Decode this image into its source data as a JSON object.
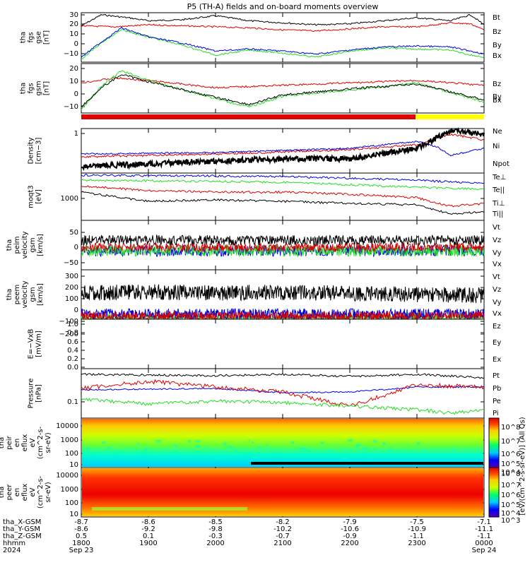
{
  "title": "P5 (TH-A) fields and on-board moments overview",
  "colors": {
    "black": "#000000",
    "red": "#dd0000",
    "green": "#22dd22",
    "blue": "#0000dd",
    "yellow": "#ffff00",
    "frame": "#000000"
  },
  "bars": {
    "colors": [
      "red",
      "yellow"
    ],
    "fractions": [
      0.83,
      0.17
    ]
  },
  "panels": [
    {
      "id": "fgs-gse",
      "ylabel": [
        "tha",
        "fgs",
        "gse",
        "[nT]"
      ],
      "ticks": [
        "30",
        "20",
        "10",
        "0",
        "−10"
      ],
      "legend": [
        "Bt",
        "Bz",
        "By",
        "Bx"
      ],
      "legend_colors": [
        "black",
        "red",
        "green",
        "blue"
      ],
      "ylim": [
        -17,
        32
      ],
      "ytick_values": [
        30,
        20,
        10,
        0,
        -10
      ]
    },
    {
      "id": "fgs-gsm",
      "ylabel": [
        "tha",
        "fgs",
        "gsm",
        "[nT]"
      ],
      "ticks": [
        "20",
        "10",
        "0",
        "−10"
      ],
      "legend": [
        "Bz",
        "By",
        "Bx"
      ],
      "legend_colors": [
        "red",
        "green",
        "black"
      ],
      "ylim": [
        -17,
        24
      ],
      "ytick_values": [
        20,
        10,
        0,
        -10
      ]
    },
    {
      "id": "density",
      "ylabel": [
        "Density",
        "[cm−3]"
      ],
      "ticks": [
        "1"
      ],
      "legend": [
        "Ne",
        "Ni",
        "Npot"
      ],
      "legend_colors": [
        "red",
        "black",
        "blue"
      ]
    },
    {
      "id": "temp",
      "ylabel": [
        "moqt3",
        "[eV]"
      ],
      "ticks": [
        "1000"
      ],
      "legend": [
        "Te⊥",
        "Te||",
        "Ti⊥",
        "Ti||"
      ],
      "legend_colors": [
        "red",
        "black",
        "blue",
        "green"
      ]
    },
    {
      "id": "peim-vel",
      "ylabel": [
        "tha",
        "peim",
        "velocity",
        "gsm",
        "[km/s]"
      ],
      "ticks": [
        "50",
        "0",
        "−50"
      ],
      "legend": [
        "Vt",
        "Vz",
        "Vy",
        "Vx"
      ],
      "legend_colors": [
        "black",
        "red",
        "green",
        "blue"
      ],
      "ylim": [
        -75,
        75
      ],
      "ytick_values": [
        50,
        0,
        -50
      ]
    },
    {
      "id": "peem-vel",
      "ylabel": [
        "tha",
        "peem",
        "velocity",
        "gsm",
        "[km/s]"
      ],
      "ticks": [
        "300",
        "200",
        "100",
        "0",
        "−100",
        "−200"
      ],
      "legend": [
        "Vt",
        "Vz",
        "Vy",
        "Vx"
      ],
      "legend_colors": [
        "black",
        "red",
        "green",
        "blue"
      ],
      "ylim": [
        -220,
        380
      ],
      "ytick_values": [
        300,
        200,
        100,
        0,
        -100,
        -200
      ]
    },
    {
      "id": "efield",
      "ylabel": [
        "E=−VxB",
        "[mV/m]"
      ],
      "ticks": [
        "1.0",
        "0.8",
        "0.6",
        "0.4",
        "0.2",
        "0.0"
      ],
      "legend": [
        "Ez",
        "Ey",
        "Ex"
      ],
      "legend_colors": [
        "red",
        "green",
        "blue"
      ],
      "ylim": [
        -0.05,
        1.0
      ],
      "ytick_values": [
        1.0,
        0.8,
        0.6,
        0.4,
        0.2,
        0.0
      ]
    },
    {
      "id": "pressure",
      "ylabel": [
        "Pressure",
        "[nPa]"
      ],
      "ticks": [
        "0.1"
      ],
      "legend": [
        "Pt",
        "Pb",
        "Pe",
        "Pi"
      ],
      "legend_colors": [
        "black",
        "red",
        "green",
        "blue"
      ]
    },
    {
      "id": "ion-spec",
      "ylabel": [
        "tha",
        "peir",
        "en",
        "eflux",
        "eV",
        "(cm^2-s-",
        "sr-eV)"
      ],
      "ticks": [
        "10000",
        "1000",
        "100",
        "10"
      ]
    },
    {
      "id": "el-spec",
      "ylabel": [
        "tha",
        "peer",
        "en",
        "eflux",
        "eV",
        "(cm^2-s-",
        "sr-eV)"
      ],
      "ticks": [
        "10000",
        "1000",
        "100",
        "10"
      ]
    }
  ],
  "colorbar": {
    "label": "[eV/(cm^2-s-sr-eV)] (All Qs)",
    "ticks_upper": [
      "10^8",
      "10^7",
      "10^6",
      "10^5",
      "10^4"
    ],
    "ticks_lower": [
      "10^8",
      "10^7",
      "10^6",
      "10^5",
      "10^4",
      "10^3"
    ]
  },
  "xaxis": {
    "row_labels": [
      "tha_X-GSM",
      "tha_Y-GSM",
      "tha_Z-GSM",
      "hhmm",
      "2024"
    ],
    "columns": [
      {
        "values": [
          "-8.7",
          "-8.6",
          "0.5",
          "1800",
          "Sep 23"
        ]
      },
      {
        "values": [
          "-8.6",
          "-9.2",
          "0.1",
          "1900",
          ""
        ]
      },
      {
        "values": [
          "-8.5",
          "-9.8",
          "-0.3",
          "2000",
          ""
        ]
      },
      {
        "values": [
          "-8.2",
          "-10.2",
          "-0.7",
          "2100",
          ""
        ]
      },
      {
        "values": [
          "-7.9",
          "-10.6",
          "-0.9",
          "2200",
          ""
        ]
      },
      {
        "values": [
          "-7.5",
          "-10.9",
          "-1.1",
          "2300",
          ""
        ]
      },
      {
        "values": [
          "-7.1",
          "-11.1",
          "-1.1",
          "0000",
          "Sep 24"
        ]
      }
    ]
  },
  "chart_data": {
    "type": "line",
    "title": "P5 (TH-A) fields and on-board moments overview",
    "x_range_hhmm": [
      "1800",
      "0000"
    ],
    "series_fgs_gse": [
      {
        "name": "Bt",
        "x_hr": [
          0,
          0.3,
          0.7,
          1.0,
          1.5,
          2.0,
          2.5,
          3.0,
          3.5,
          4.0,
          4.5,
          5.0,
          5.5,
          5.8,
          6.0
        ],
        "values": [
          19,
          30,
          27,
          24,
          25,
          29,
          24,
          22,
          20,
          21,
          24,
          27,
          24,
          30,
          20
        ]
      },
      {
        "name": "Bz",
        "x_hr": [
          0,
          0.5,
          1.0,
          1.5,
          2.0,
          2.5,
          3.0,
          3.5,
          4.0,
          4.5,
          5.0,
          5.5,
          5.8,
          6.0
        ],
        "values": [
          19,
          18,
          20,
          19,
          18,
          17,
          15,
          14,
          16,
          18,
          18,
          22,
          21,
          15
        ]
      },
      {
        "name": "By",
        "x_hr": [
          0,
          0.3,
          0.6,
          1.0,
          1.5,
          2.0,
          2.5,
          3.0,
          3.5,
          4.0,
          4.5,
          5.0,
          5.5,
          5.8,
          6.0
        ],
        "values": [
          -14,
          2,
          15,
          8,
          0,
          -10,
          -5,
          -8,
          -12,
          -6,
          -3,
          -4,
          -5,
          -10,
          -12
        ]
      },
      {
        "name": "Bx",
        "x_hr": [
          0,
          0.3,
          0.6,
          1.0,
          1.5,
          2.0,
          2.5,
          3.0,
          3.5,
          4.0,
          4.5,
          5.0,
          5.5,
          5.8,
          6.0
        ],
        "values": [
          -12,
          3,
          17,
          8,
          2,
          -6,
          -4,
          -6,
          -9,
          -5,
          -2,
          -1,
          -2,
          -6,
          -9
        ]
      }
    ],
    "series_peem_vel": [
      {
        "name": "Vt",
        "x_hr": [
          0,
          1,
          2,
          3,
          4,
          5,
          6
        ],
        "values": [
          100,
          110,
          100,
          105,
          95,
          80,
          70
        ]
      }
    ]
  }
}
